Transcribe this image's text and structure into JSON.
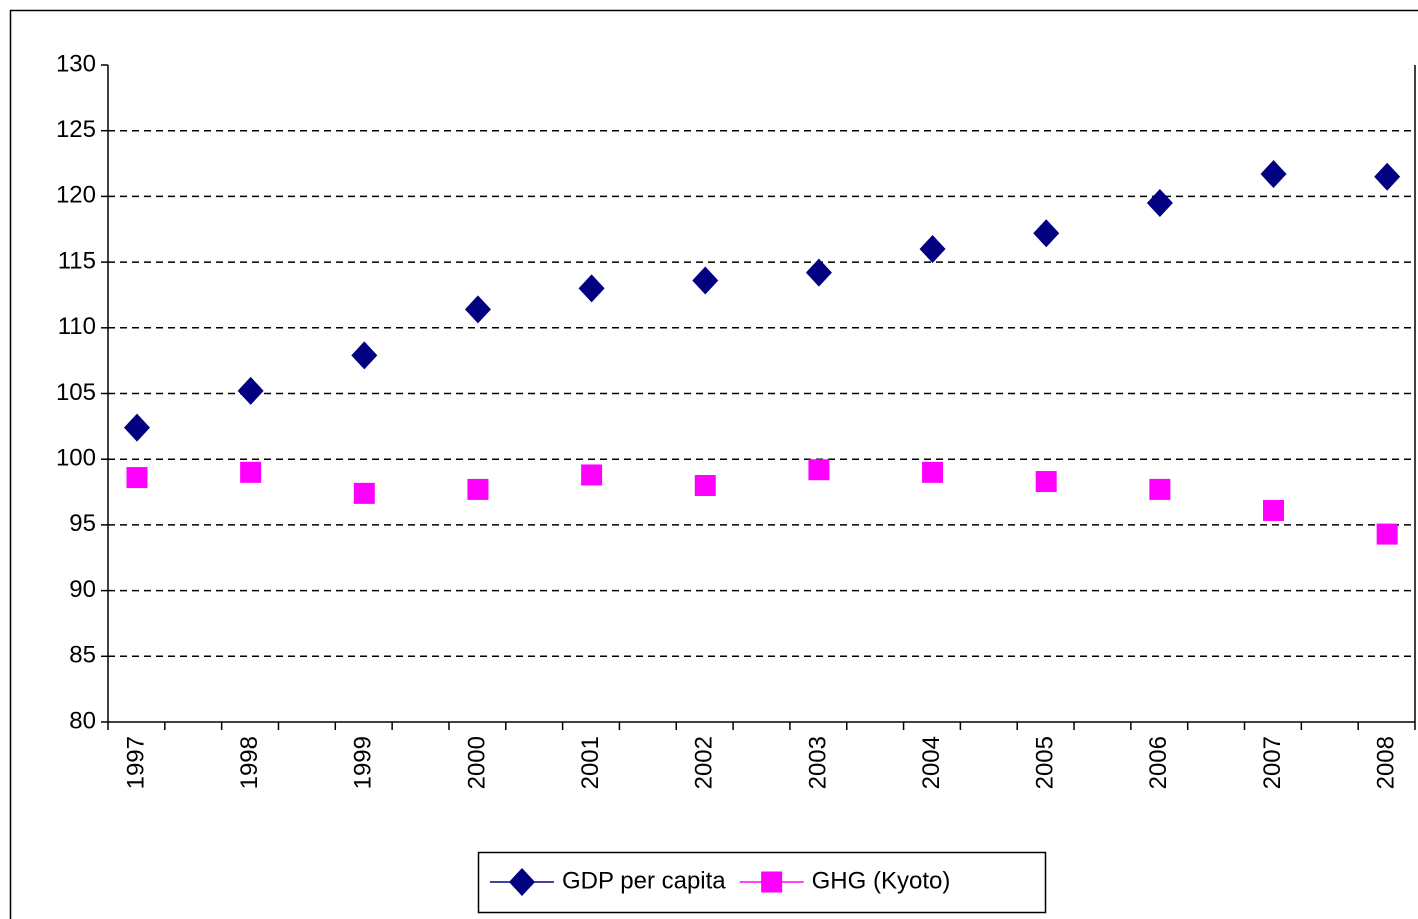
{
  "chart_data": {
    "type": "scatter",
    "categories": [
      "1997",
      "1998",
      "1999",
      "2000",
      "2001",
      "2002",
      "2003",
      "2004",
      "2005",
      "2006",
      "2007",
      "2008"
    ],
    "series": [
      {
        "name": "GDP per capita",
        "color": "#000080",
        "marker": "diamond",
        "values": [
          102.4,
          105.2,
          107.9,
          111.4,
          113.0,
          113.6,
          114.2,
          116.0,
          117.2,
          119.5,
          121.7,
          121.5
        ]
      },
      {
        "name": "GHG (Kyoto)",
        "color": "#ff00ff",
        "marker": "square",
        "values": [
          98.6,
          99.0,
          97.4,
          97.7,
          98.8,
          98.0,
          99.2,
          99.0,
          98.3,
          97.7,
          96.1,
          94.3
        ]
      }
    ],
    "ylim": [
      80,
      130
    ],
    "yticks": [
      80,
      85,
      90,
      95,
      100,
      105,
      110,
      115,
      120,
      125,
      130
    ],
    "grid": true,
    "legend": "bottom"
  }
}
